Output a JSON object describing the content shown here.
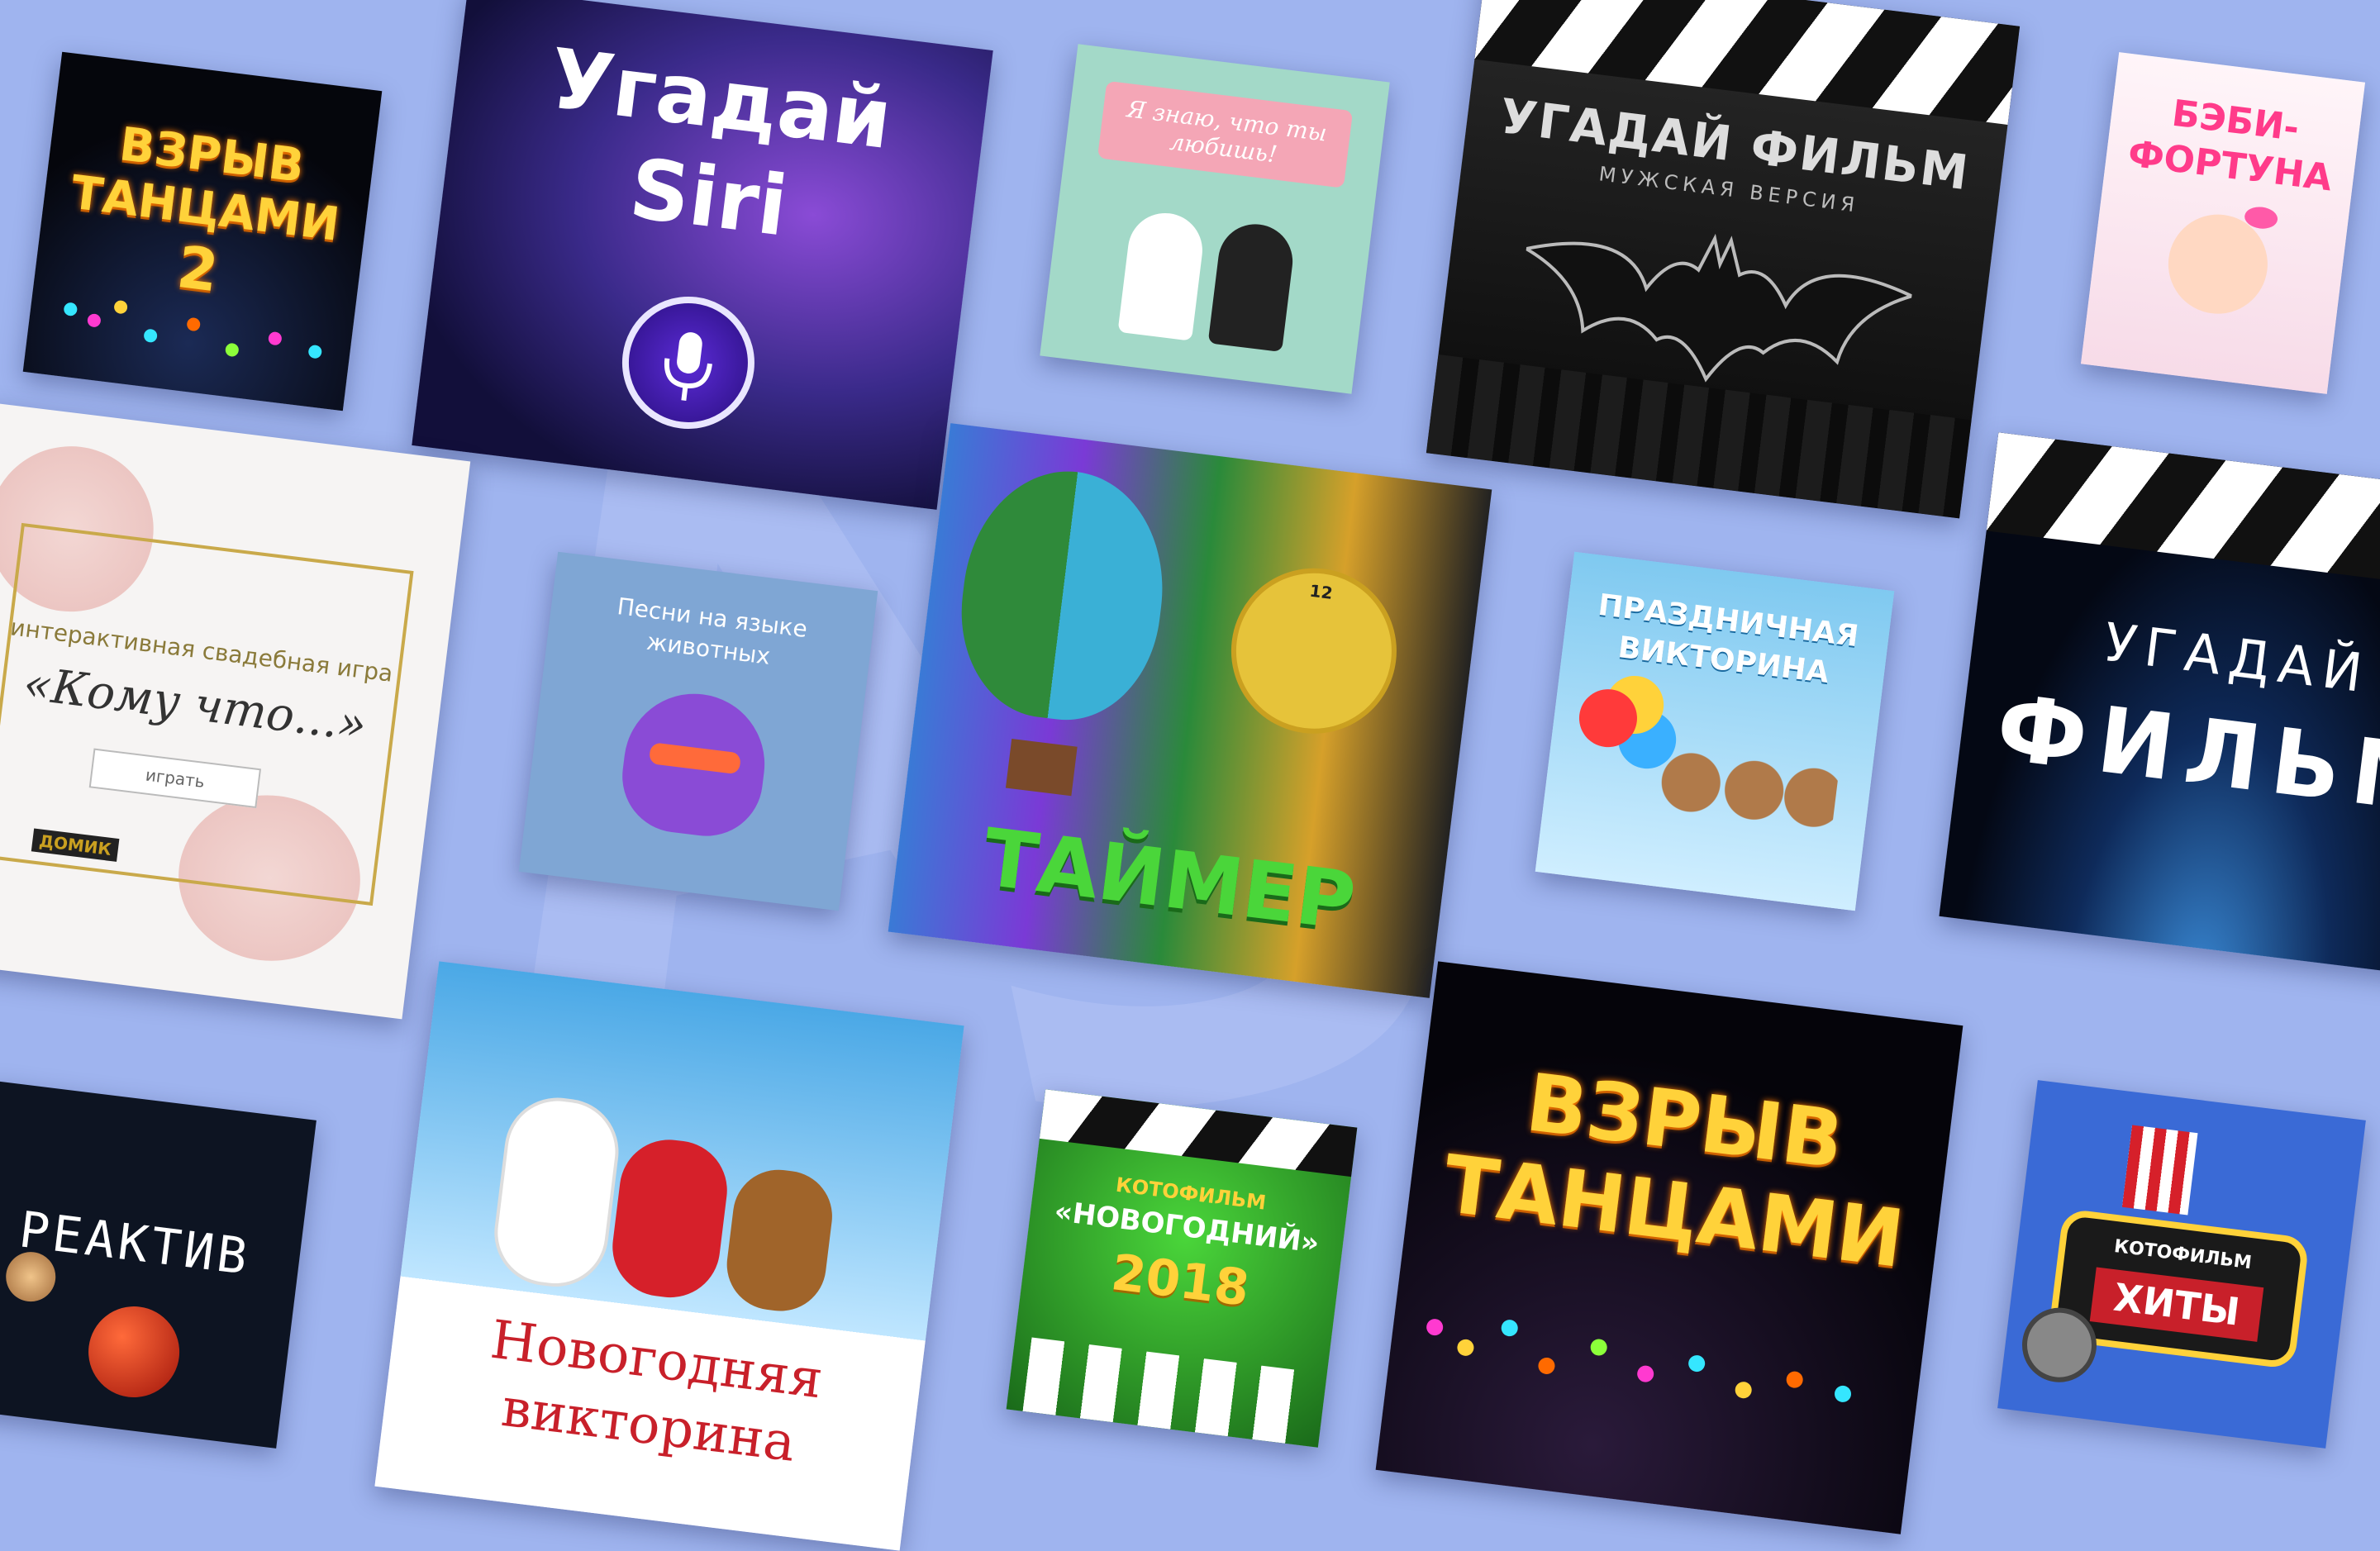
{
  "accent_colors": {
    "background": "#9fb4ef",
    "gold": "#ffd23a",
    "red": "#c8202a"
  },
  "cards": {
    "dance2": {
      "line1": "ВЗРЫВ",
      "line2": "ТАНЦАМИ",
      "line3": "2"
    },
    "siri": {
      "line1": "Угадай",
      "line2": "Siri",
      "icon": "microphone-icon"
    },
    "wedding_love": {
      "banner": "Я знаю, что ты любишь!"
    },
    "film_male": {
      "title": "УГАДАЙ ФИЛЬМ",
      "subtitle": "МУЖСКАЯ ВЕРСИЯ",
      "icon": "bat-logo-icon"
    },
    "baby": {
      "line1": "БЭБИ-",
      "line2": "ФОРТУНА"
    },
    "wedding_game": {
      "caption": "интерактивная свадебная игра",
      "title": "«Кому что...»",
      "button": "играть",
      "logo": "ДОМИК"
    },
    "animal_songs": {
      "line1": "Песни на языке",
      "line2": "животных"
    },
    "timer": {
      "title": "ТАЙМЕР",
      "clock_number": "12"
    },
    "holiday_quiz": {
      "line1": "ПРАЗДНИЧНАЯ",
      "line2": "ВИКТОРИНА"
    },
    "film_space": {
      "line1": "УГАДАЙ",
      "line2": "ФИЛЬМ"
    },
    "reaktiv": {
      "title": "РЕАКТИВ"
    },
    "newyear_quiz": {
      "line1": "Новогодняя",
      "line2": "викторина"
    },
    "kotofilm_ny": {
      "brand": "КОТОФИЛЬМ",
      "title": "«НОВОГОДНИЙ»",
      "year": "2018"
    },
    "dance": {
      "line1": "ВЗРЫВ",
      "line2": "ТАНЦАМИ"
    },
    "kotofilm_hits": {
      "brand": "КОТОФИЛЬМ",
      "title": "ХИТЫ"
    }
  }
}
